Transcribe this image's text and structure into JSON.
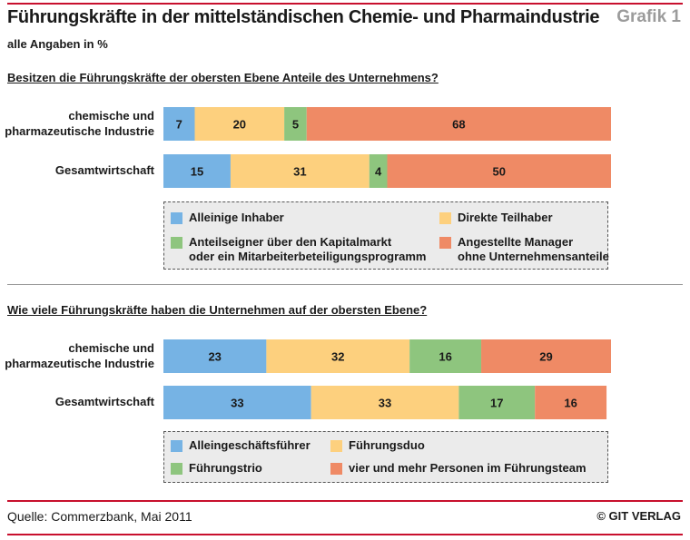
{
  "header": {
    "title": "Führungskräfte in der mittelständischen Chemie- und Pharmaindustrie",
    "grafik_label": "Grafik 1",
    "subtitle": "alle Angaben in %"
  },
  "footer": {
    "source": "Quelle: Commerzbank, Mai 2011",
    "publisher": "© GIT VERLAG"
  },
  "colors": {
    "blue": "#76b3e4",
    "yellow": "#fdd07e",
    "green": "#8ec57e",
    "orange": "#ef8a65"
  },
  "chart_data": [
    {
      "type": "bar",
      "stacked": true,
      "orientation": "horizontal",
      "title": "Besitzen die Führungskräfte der obersten Ebene Anteile des Unternehmens?",
      "categories": [
        "chemische und pharmazeutische Industrie",
        "Gesamtwirtschaft"
      ],
      "category_lines": [
        [
          "chemische und",
          "pharmazeutische Industrie"
        ],
        [
          "Gesamtwirtschaft"
        ]
      ],
      "series": [
        {
          "name": "Alleinige Inhaber",
          "values": [
            7,
            15
          ],
          "color": "#76b3e4"
        },
        {
          "name": "Direkte Teilhaber",
          "values": [
            20,
            31
          ],
          "color": "#fdd07e"
        },
        {
          "name": "Anteilseigner über den Kapitalmarkt oder ein Mitarbeiterbeteiligungsprogramm",
          "legend_lines": [
            "Anteilseigner über den Kapitalmarkt",
            "oder ein Mitarbeiterbeteiligungsprogramm"
          ],
          "values": [
            5,
            4
          ],
          "color": "#8ec57e"
        },
        {
          "name": "Angestellte Manager ohne Unternehmensanteile",
          "legend_lines": [
            "Angestellte Manager",
            "ohne Unternehmensanteile"
          ],
          "values": [
            68,
            50
          ],
          "color": "#ef8a65"
        }
      ],
      "xlim": [
        0,
        100
      ],
      "legend": "below"
    },
    {
      "type": "bar",
      "stacked": true,
      "orientation": "horizontal",
      "title": "Wie viele Führungskräfte haben die Unternehmen auf der obersten Ebene?",
      "categories": [
        "chemische und pharmazeutische Industrie",
        "Gesamtwirtschaft"
      ],
      "category_lines": [
        [
          "chemische und",
          "pharmazeutische Industrie"
        ],
        [
          "Gesamtwirtschaft"
        ]
      ],
      "series": [
        {
          "name": "Alleingeschäftsführer",
          "values": [
            23,
            33
          ],
          "color": "#76b3e4"
        },
        {
          "name": "Führungsduo",
          "values": [
            32,
            33
          ],
          "color": "#fdd07e"
        },
        {
          "name": "Führungstrio",
          "values": [
            16,
            17
          ],
          "color": "#8ec57e"
        },
        {
          "name": "vier und mehr Personen im Führungsteam",
          "values": [
            29,
            16
          ],
          "color": "#ef8a65"
        }
      ],
      "xlim": [
        0,
        100
      ],
      "legend": "below"
    }
  ]
}
